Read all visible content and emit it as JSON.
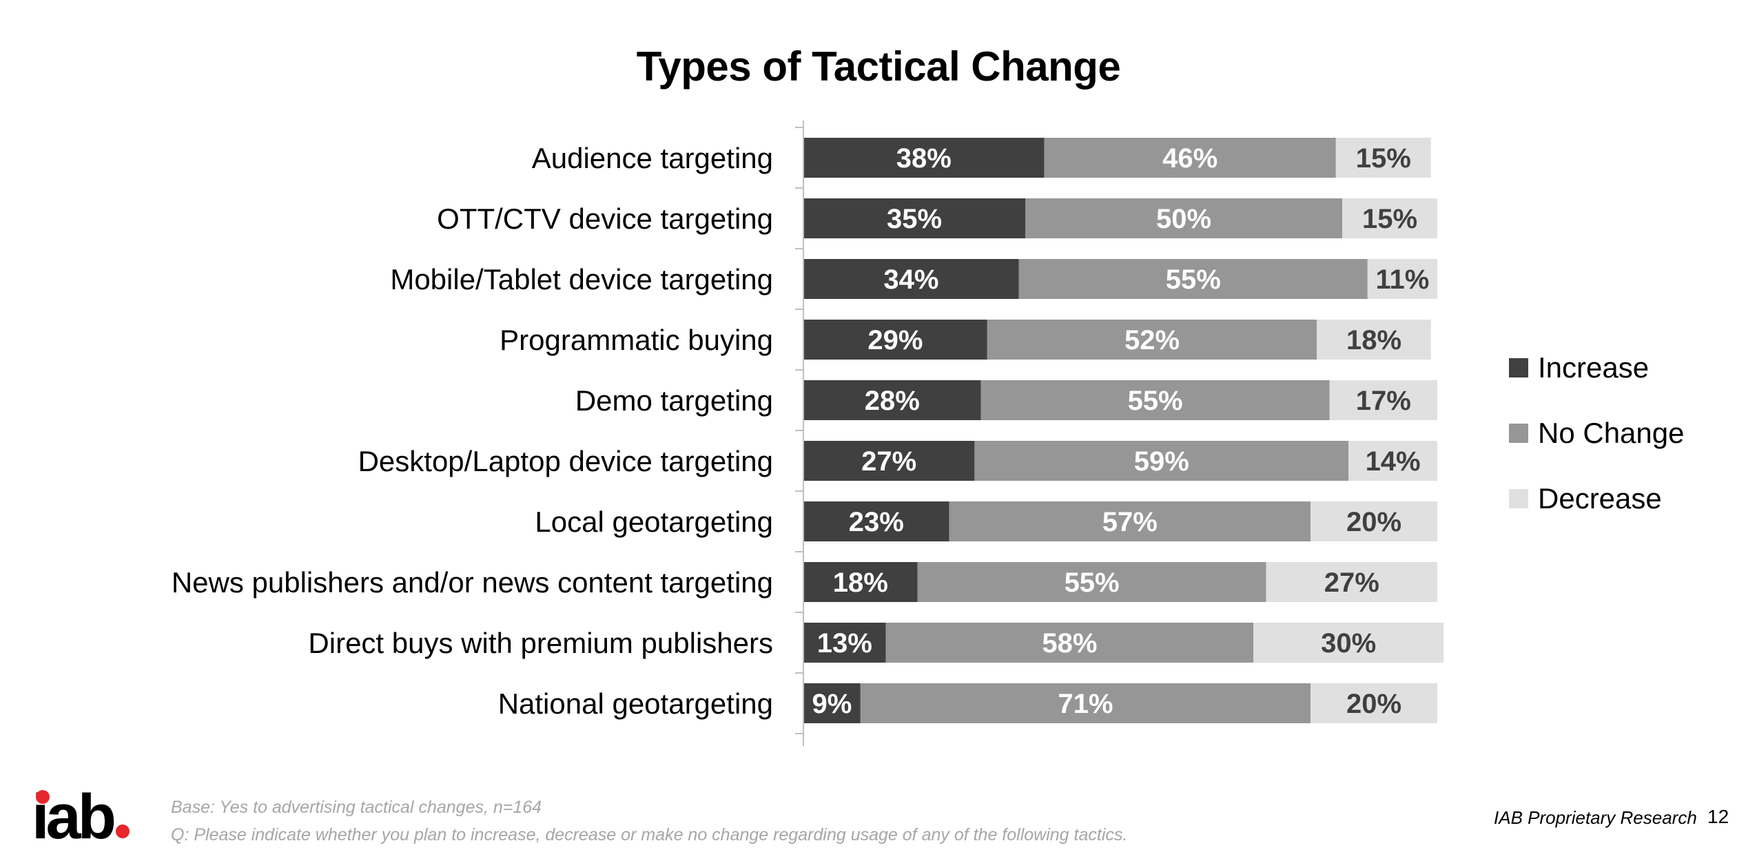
{
  "title": "Types of Tactical Change",
  "chart_data": {
    "type": "bar",
    "orientation": "horizontal",
    "stacked": true,
    "percent_stacked": true,
    "categories": [
      "Audience targeting",
      "OTT/CTV device targeting",
      "Mobile/Tablet device targeting",
      "Programmatic buying",
      "Demo targeting",
      "Desktop/Laptop device targeting",
      "Local geotargeting",
      "News publishers and/or news content targeting",
      "Direct buys with premium publishers",
      "National geotargeting"
    ],
    "series": [
      {
        "name": "Increase",
        "color": "#404040",
        "label_color": "#ffffff",
        "values": [
          38,
          35,
          34,
          29,
          28,
          27,
          23,
          18,
          13,
          9
        ]
      },
      {
        "name": "No Change",
        "color": "#969696",
        "label_color": "#ffffff",
        "values": [
          46,
          50,
          55,
          52,
          55,
          59,
          57,
          55,
          58,
          71
        ]
      },
      {
        "name": "Decrease",
        "color": "#e0e0e0",
        "label_color": "#404040",
        "values": [
          15,
          15,
          11,
          18,
          17,
          14,
          20,
          27,
          30,
          20
        ]
      }
    ],
    "data_label_suffix": "%",
    "title": "Types of Tactical Change",
    "xlabel": "",
    "ylabel": "",
    "grid": false,
    "legend_position": "right"
  },
  "footer": {
    "logo_text": "iab",
    "base_note": "Base: Yes to advertising tactical changes, n=164",
    "question_note": "Q: Please indicate whether you plan to increase, decrease or make no change regarding usage of any of the following tactics.",
    "proprietary": "IAB Proprietary Research",
    "page_number": "12"
  }
}
